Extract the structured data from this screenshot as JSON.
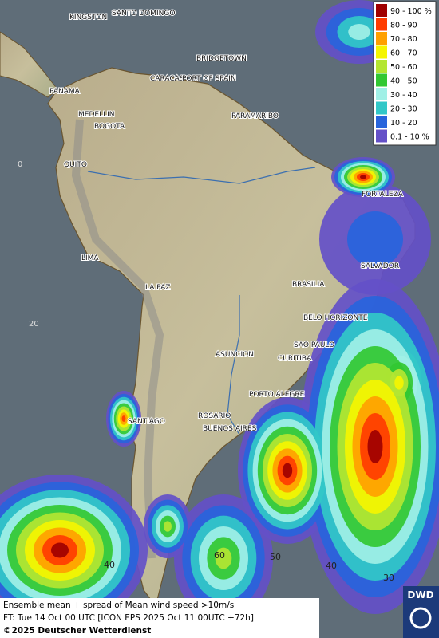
{
  "legend": {
    "items": [
      {
        "label": "90 - 100 %",
        "color": "#a00000"
      },
      {
        "label": "80 - 90",
        "color": "#ff3c00"
      },
      {
        "label": "70 - 80",
        "color": "#ffa000"
      },
      {
        "label": "60 - 70",
        "color": "#f5f500"
      },
      {
        "label": "50 - 60",
        "color": "#b4e632"
      },
      {
        "label": "40 - 50",
        "color": "#32c832"
      },
      {
        "label": "30 - 40",
        "color": "#a0f0e6"
      },
      {
        "label": "20 - 30",
        "color": "#32c8c8"
      },
      {
        "label": "10 - 20",
        "color": "#2864dc"
      },
      {
        "label": "0.1 - 10 %",
        "color": "#6450c8"
      }
    ]
  },
  "map": {
    "cities": [
      "KINGSTON",
      "SANTO DOMINGO",
      "BRIDGETOWN",
      "CARACAS",
      "PORT OF SPAIN",
      "PANAMA",
      "MEDELLIN",
      "BOGOTA",
      "PARAMARIBO",
      "QUITO",
      "FORTALEZA",
      "LIMA",
      "SALVADOR",
      "LA PAZ",
      "BRASILIA",
      "BELO HORIZONTE",
      "SAO PAULO",
      "ASUNCION",
      "CURITIBA",
      "PORTO ALEGRE",
      "ROSARIO",
      "SANTIAGO",
      "BUENOS AIRES"
    ],
    "latitude_labels": [
      "0",
      "20"
    ],
    "contour_labels": [
      "60",
      "50",
      "40",
      "30",
      "40"
    ]
  },
  "footer": {
    "description": "Ensemble mean + spread of Mean wind speed >10m/s",
    "forecast_time": "FT: Tue 14 Oct 00 UTC [ICON EPS 2025 Oct 11 00UTC +72h]",
    "copyright": "©2025 Deutscher Wetterdienst"
  },
  "logo": {
    "text": "DWD"
  }
}
